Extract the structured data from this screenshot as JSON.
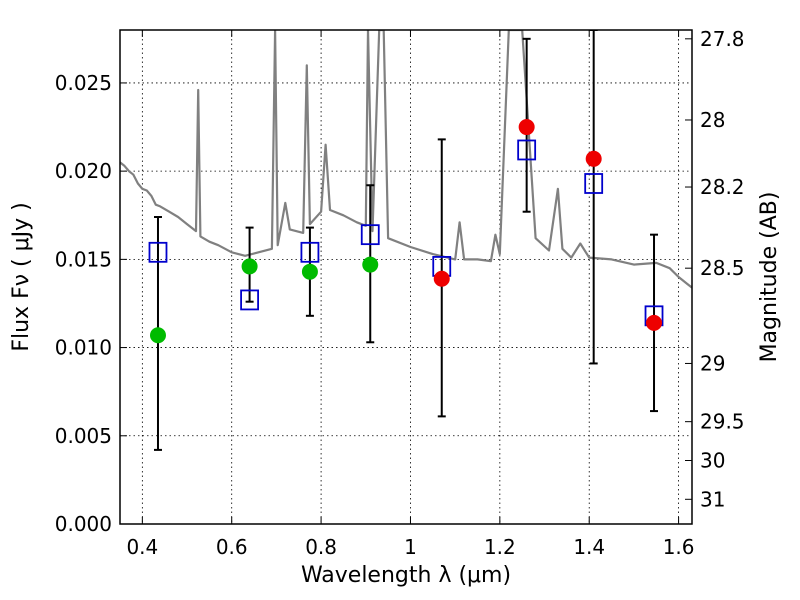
{
  "chart_data": {
    "type": "scatter",
    "xlabel": "Wavelength  λ (μm)",
    "ylabel": "Flux  F_ν  ( μJy )",
    "y2label": "Magnitude (AB)",
    "xlim": [
      0.35,
      1.63
    ],
    "ylim": [
      0.0,
      0.028
    ],
    "grid": true,
    "x_ticks": [
      0.4,
      0.6,
      0.8,
      1.0,
      1.2,
      1.4,
      1.6
    ],
    "x_tick_labels": [
      "0.4",
      "0.6",
      "0.8",
      "1",
      "1.2",
      "1.4",
      "1.6"
    ],
    "y_ticks": [
      0.0,
      0.005,
      0.01,
      0.015,
      0.02,
      0.025
    ],
    "y_tick_labels": [
      "0.000",
      "0.005",
      "0.010",
      "0.015",
      "0.020",
      "0.025"
    ],
    "y2_ticks": [
      {
        "flux": 0.0275,
        "label": "27.8"
      },
      {
        "flux": 0.0229,
        "label": "28"
      },
      {
        "flux": 0.0191,
        "label": "28.2"
      },
      {
        "flux": 0.0145,
        "label": "28.5"
      },
      {
        "flux": 0.0091,
        "label": "29"
      },
      {
        "flux": 0.0058,
        "label": "29.5"
      },
      {
        "flux": 0.0036,
        "label": "30"
      },
      {
        "flux": 0.0014,
        "label": "31"
      }
    ],
    "colors": {
      "spectrum": "#808080",
      "model_points": "#0000cc",
      "obs_green": "#00bb00",
      "obs_red": "#ee0000",
      "errorbar": "#000000"
    },
    "series": [
      {
        "kind": "model-squares",
        "x": [
          0.435,
          0.64,
          0.775,
          0.91,
          1.07,
          1.26,
          1.41,
          1.545
        ],
        "y": [
          0.0154,
          0.0127,
          0.0154,
          0.0164,
          0.0146,
          0.0212,
          0.0193,
          0.0118
        ]
      },
      {
        "kind": "observed-green",
        "x": [
          0.435,
          0.64,
          0.775,
          0.91
        ],
        "y": [
          0.0107,
          0.0146,
          0.0143,
          0.0147
        ],
        "err_low": [
          0.0042,
          0.0126,
          0.0118,
          0.0103
        ],
        "err_high": [
          0.0174,
          0.0168,
          0.0168,
          0.0192
        ]
      },
      {
        "kind": "observed-red",
        "x": [
          1.07,
          1.26,
          1.41,
          1.545
        ],
        "y": [
          0.0139,
          0.0225,
          0.0207,
          0.0114
        ],
        "err_low": [
          0.0061,
          0.0177,
          0.0091,
          0.0064
        ],
        "err_high": [
          0.0218,
          0.0275,
          0.028,
          0.0164
        ]
      }
    ],
    "spectrum": [
      [
        0.35,
        0.0205
      ],
      [
        0.36,
        0.0203
      ],
      [
        0.37,
        0.02
      ],
      [
        0.38,
        0.0198
      ],
      [
        0.39,
        0.0193
      ],
      [
        0.4,
        0.019
      ],
      [
        0.41,
        0.0189
      ],
      [
        0.42,
        0.0186
      ],
      [
        0.43,
        0.0181
      ],
      [
        0.44,
        0.018
      ],
      [
        0.46,
        0.0177
      ],
      [
        0.48,
        0.0174
      ],
      [
        0.5,
        0.017
      ],
      [
        0.52,
        0.0166
      ],
      [
        0.525,
        0.0246
      ],
      [
        0.53,
        0.0163
      ],
      [
        0.55,
        0.016
      ],
      [
        0.57,
        0.0158
      ],
      [
        0.6,
        0.0154
      ],
      [
        0.63,
        0.0152
      ],
      [
        0.66,
        0.0154
      ],
      [
        0.69,
        0.0156
      ],
      [
        0.697,
        0.028
      ],
      [
        0.703,
        0.0158
      ],
      [
        0.72,
        0.0182
      ],
      [
        0.73,
        0.0167
      ],
      [
        0.76,
        0.0165
      ],
      [
        0.768,
        0.026
      ],
      [
        0.775,
        0.017
      ],
      [
        0.8,
        0.0177
      ],
      [
        0.81,
        0.0215
      ],
      [
        0.82,
        0.0178
      ],
      [
        0.85,
        0.0175
      ],
      [
        0.88,
        0.0171
      ],
      [
        0.9,
        0.0169
      ],
      [
        0.905,
        0.028
      ],
      [
        0.915,
        0.0166
      ],
      [
        0.93,
        0.028
      ],
      [
        0.94,
        0.028
      ],
      [
        0.95,
        0.0162
      ],
      [
        1.0,
        0.0157
      ],
      [
        1.05,
        0.0153
      ],
      [
        1.1,
        0.015
      ],
      [
        1.11,
        0.0171
      ],
      [
        1.12,
        0.015
      ],
      [
        1.15,
        0.015
      ],
      [
        1.18,
        0.0149
      ],
      [
        1.19,
        0.0164
      ],
      [
        1.2,
        0.0153
      ],
      [
        1.22,
        0.028
      ],
      [
        1.25,
        0.028
      ],
      [
        1.28,
        0.0162
      ],
      [
        1.31,
        0.0155
      ],
      [
        1.33,
        0.019
      ],
      [
        1.34,
        0.0156
      ],
      [
        1.36,
        0.0151
      ],
      [
        1.38,
        0.0159
      ],
      [
        1.4,
        0.0151
      ],
      [
        1.45,
        0.015
      ],
      [
        1.5,
        0.0147
      ],
      [
        1.55,
        0.0148
      ],
      [
        1.58,
        0.0145
      ],
      [
        1.6,
        0.014
      ],
      [
        1.62,
        0.0136
      ],
      [
        1.63,
        0.0134
      ]
    ]
  }
}
